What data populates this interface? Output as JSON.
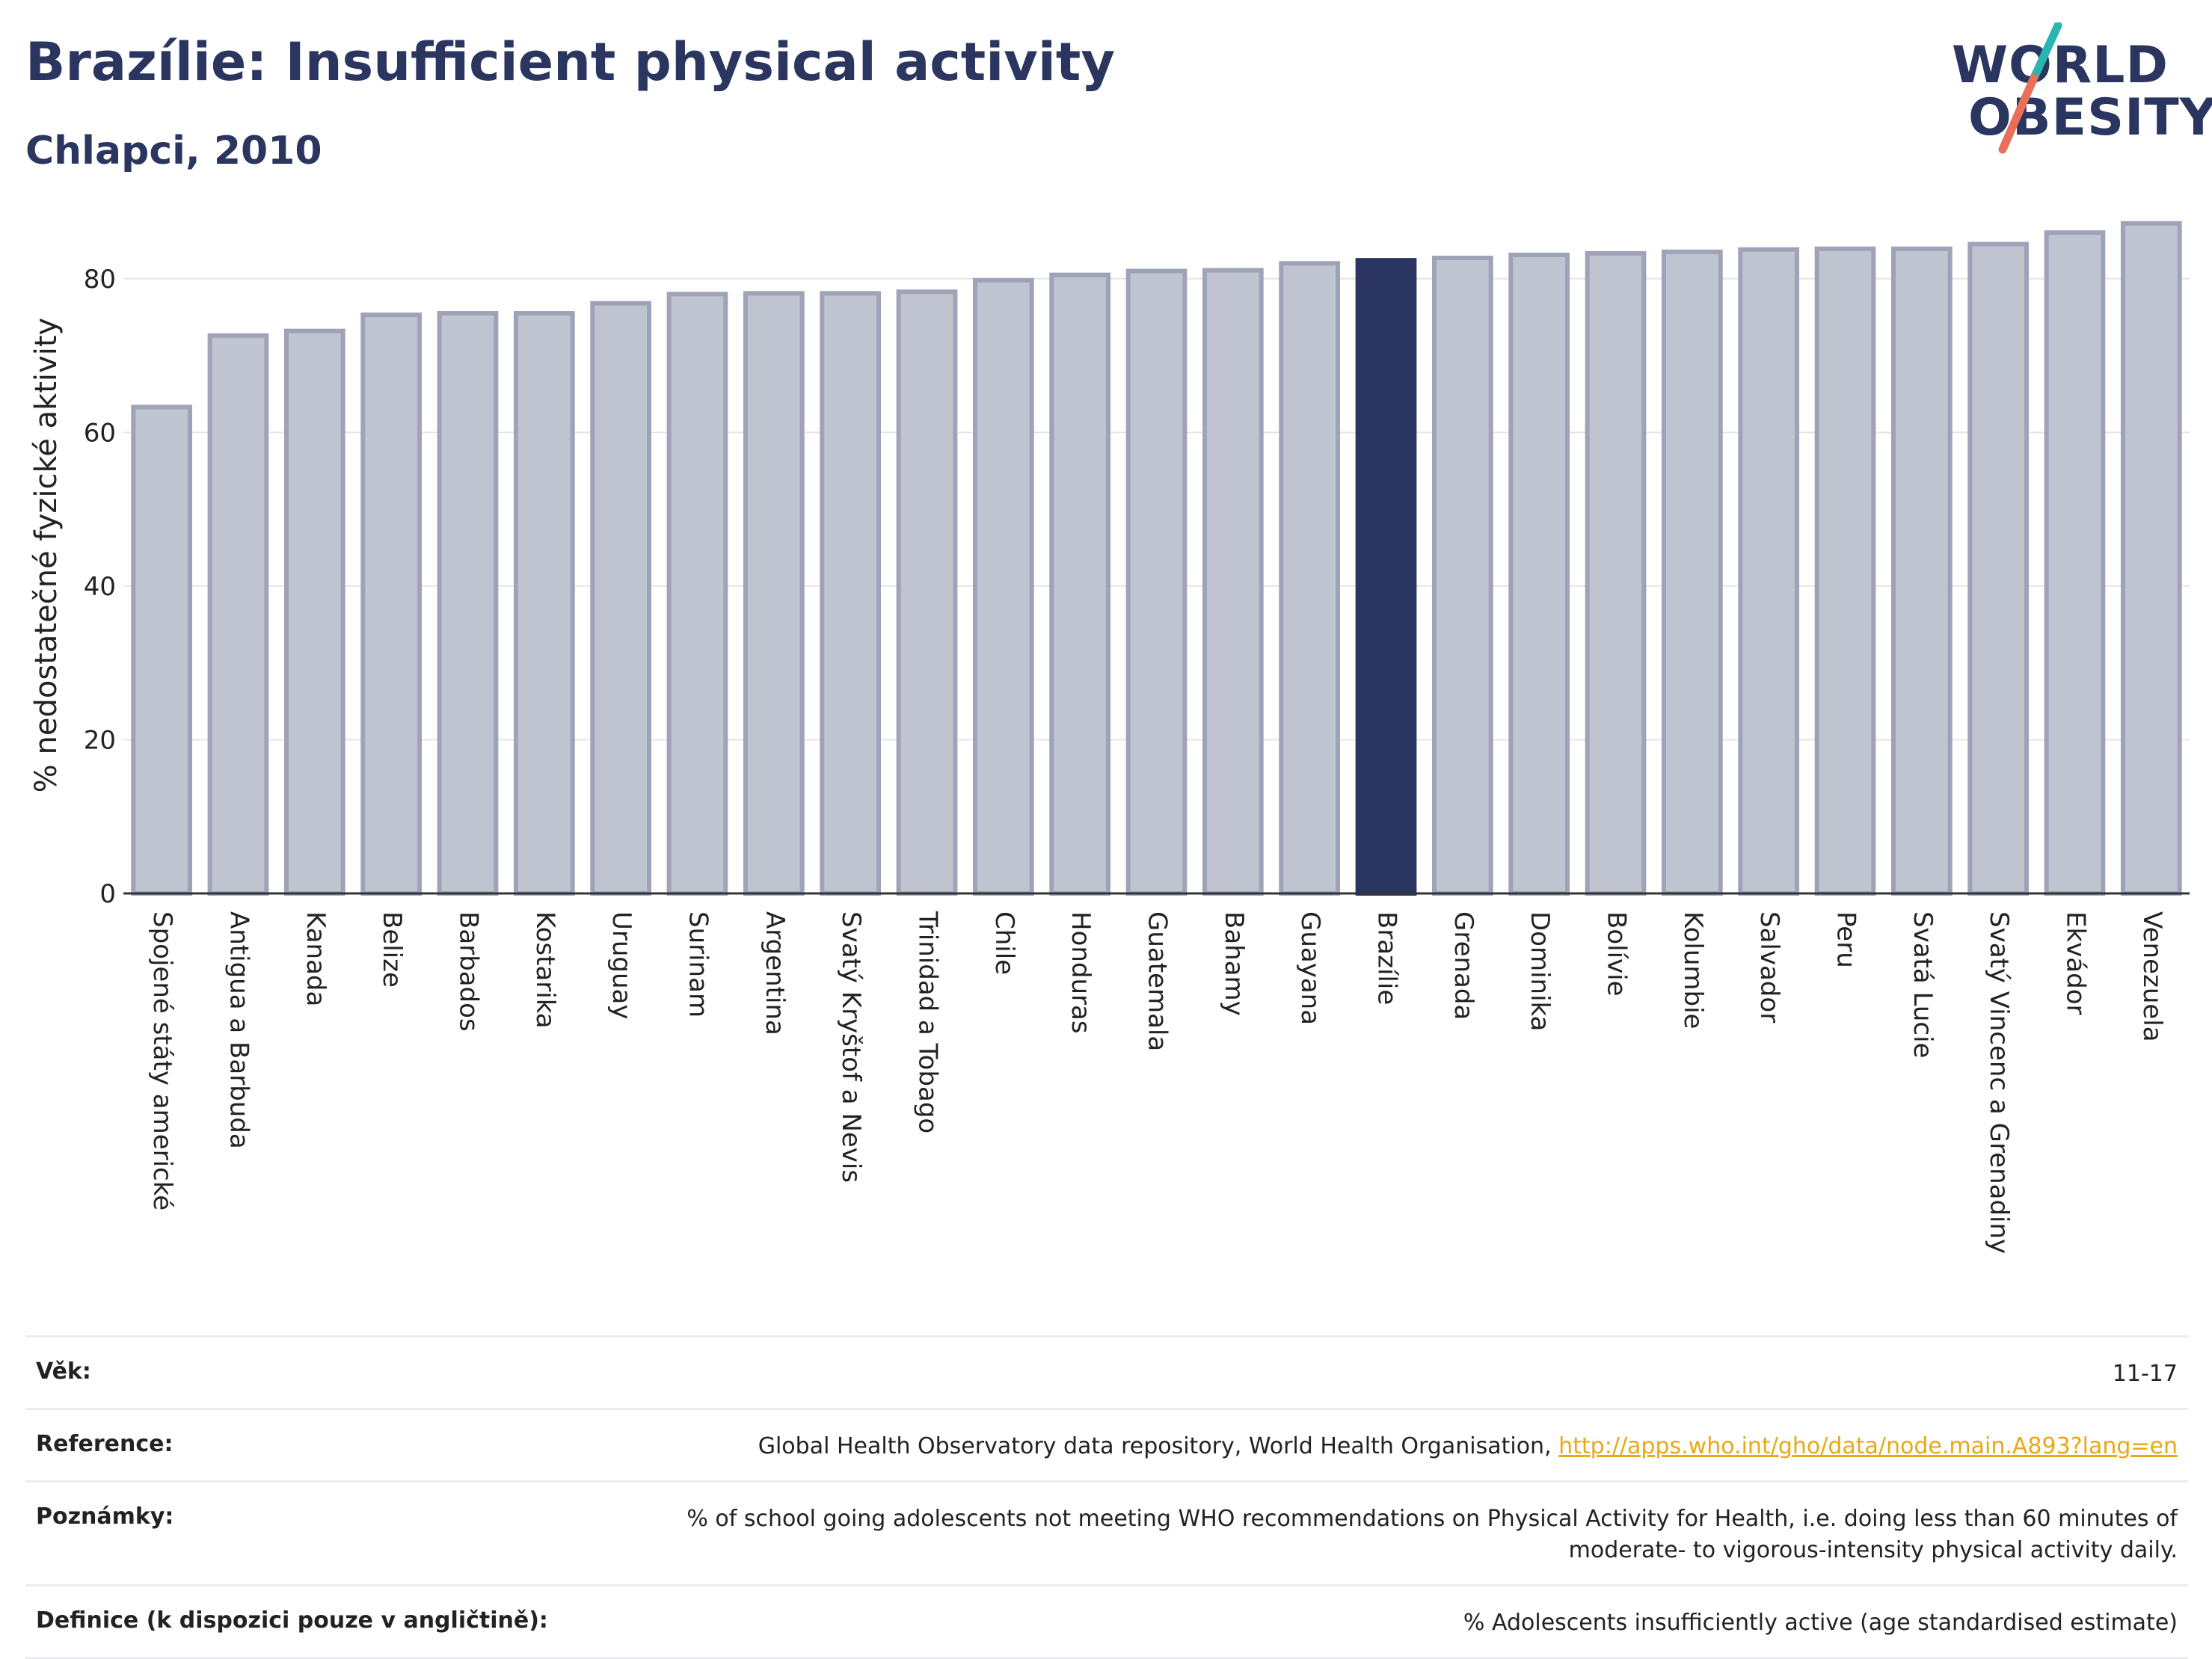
{
  "header": {
    "title": "Brazílie: Insufficient physical activity",
    "subtitle": "Chlapci, 2010"
  },
  "logo": {
    "line1": "WORLD",
    "line2": "OBESITY",
    "colors": {
      "text": "#2a3560",
      "slash_top": "#2bb5b0",
      "slash_bottom": "#e8705a"
    }
  },
  "chart_data": {
    "type": "bar",
    "title": "",
    "xlabel": "",
    "ylabel": "% nedostatečné fyzické aktivity",
    "ylim": [
      0,
      90
    ],
    "yticks": [
      0,
      20,
      40,
      60,
      80
    ],
    "grid": true,
    "highlight": "Brazílie",
    "colors": {
      "bar": "#c0c3d0",
      "bar_edge": "#9ea3b8",
      "highlight": "#2a3560",
      "grid": "#e4e5ec",
      "axis": "#333333"
    },
    "categories": [
      "Spojené státy americké",
      "Antigua a Barbuda",
      "Kanada",
      "Belize",
      "Barbados",
      "Kostarika",
      "Uruguay",
      "Surinam",
      "Argentina",
      "Svatý Kryštof a Nevis",
      "Trinidad a Tobago",
      "Chile",
      "Honduras",
      "Guatemala",
      "Bahamy",
      "Guayana",
      "Brazílie",
      "Grenada",
      "Dominika",
      "Bolívie",
      "Kolumbie",
      "Salvador",
      "Peru",
      "Svatá Lucie",
      "Svatý Vincenc a Grenadiny",
      "Ekvádor",
      "Venezuela"
    ],
    "values": [
      63.3,
      72.6,
      73.2,
      75.3,
      75.5,
      75.5,
      76.8,
      78.0,
      78.1,
      78.1,
      78.3,
      79.8,
      80.5,
      81.0,
      81.1,
      82.0,
      82.4,
      82.7,
      83.1,
      83.3,
      83.5,
      83.8,
      83.9,
      83.9,
      84.5,
      86.0,
      87.2
    ]
  },
  "info": {
    "rows": [
      {
        "label": "Věk:",
        "value": "11-17"
      },
      {
        "label": "Reference:",
        "value": "Global Health Observatory data repository, World Health Organisation, ",
        "link": "http://apps.who.int/gho/data/node.main.A893?lang=en"
      },
      {
        "label": "Poznámky:",
        "value": "% of school going adolescents not meeting WHO recommendations on Physical Activity for Health, i.e. doing less than 60 minutes of moderate- to vigorous-intensity physical activity daily."
      },
      {
        "label": "Definice (k dispozici pouze v angličtině):",
        "value": "% Adolescents insufficiently active (age standardised estimate)"
      }
    ]
  }
}
